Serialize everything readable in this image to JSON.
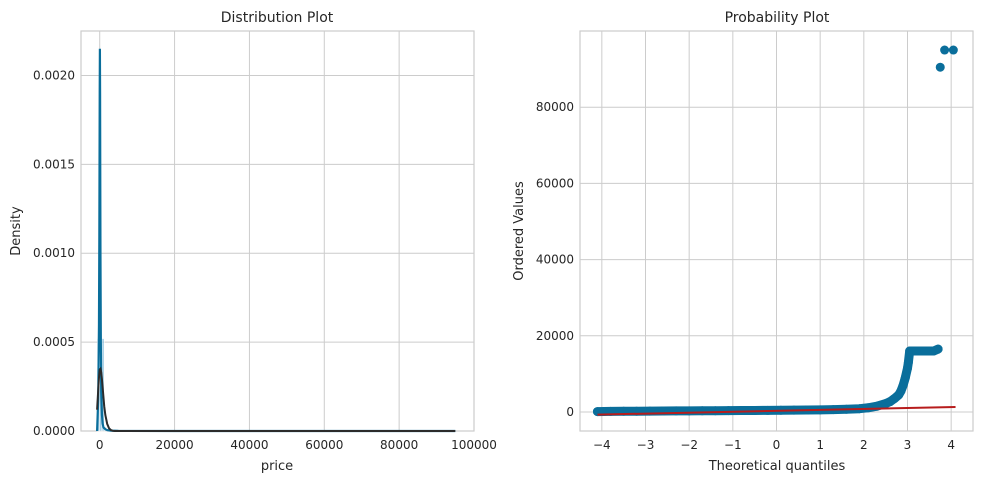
{
  "chart_data": [
    {
      "type": "histogram",
      "title": "Distribution Plot",
      "xlabel": "price",
      "ylabel": "Density",
      "xlim": [
        -5000,
        100000
      ],
      "ylim": [
        0,
        0.00225
      ],
      "grid": true,
      "xticks": [
        0,
        20000,
        40000,
        60000,
        80000,
        100000
      ],
      "xtick_labels": [
        "0",
        "20000",
        "40000",
        "60000",
        "80000",
        "100000"
      ],
      "yticks": [
        0,
        0.0005,
        0.001,
        0.0015,
        0.002
      ],
      "ytick_labels": [
        "0.0000",
        "0.0005",
        "0.0010",
        "0.0015",
        "0.0020"
      ],
      "bars": [
        {
          "x0": -600,
          "x1": 0,
          "value": 0.00052
        },
        {
          "x0": 0,
          "x1": 600,
          "value": 0.00052
        },
        {
          "x0": 600,
          "x1": 1200,
          "value": 0.00052
        },
        {
          "x0": 1200,
          "x1": 1800,
          "value": 2e-05
        }
      ],
      "kde": {
        "x": [
          -700,
          -400,
          -200,
          -100,
          0,
          50,
          100,
          150,
          200,
          300,
          400,
          600,
          800,
          1000,
          1500,
          2000,
          3000,
          5000,
          20000,
          50000,
          95000
        ],
        "y": [
          0.0,
          0.00018,
          0.0006,
          0.0011,
          0.0019,
          0.00215,
          0.0019,
          0.0014,
          0.001,
          0.0005,
          0.00022,
          9e-05,
          4e-05,
          2e-05,
          1e-05,
          5e-06,
          2e-06,
          5e-07,
          0.0,
          0.0,
          0.0
        ]
      },
      "normal_fit": {
        "x": [
          -700,
          -400,
          -200,
          0,
          200,
          400,
          600,
          800,
          1000,
          1200,
          1500,
          2000,
          2500,
          3000,
          3500,
          4000,
          6000,
          95000
        ],
        "y": [
          0.00012,
          0.00023,
          0.0003,
          0.000345,
          0.00035,
          0.00033,
          0.00029,
          0.00024,
          0.00019,
          0.00014,
          9e-05,
          4e-05,
          1.5e-05,
          5e-06,
          1e-06,
          0.0,
          0.0,
          0.0
        ]
      }
    },
    {
      "type": "scatter",
      "title": "Probability Plot",
      "xlabel": "Theoretical quantiles",
      "ylabel": "Ordered Values",
      "xlim": [
        -4.5,
        4.5
      ],
      "ylim": [
        -5000,
        100000
      ],
      "grid": true,
      "xticks": [
        -4,
        -3,
        -2,
        -1,
        0,
        1,
        2,
        3,
        4
      ],
      "xtick_labels": [
        "−4",
        "−3",
        "−2",
        "−1",
        "0",
        "1",
        "2",
        "3",
        "4"
      ],
      "yticks": [
        0,
        20000,
        40000,
        60000,
        80000
      ],
      "ytick_labels": [
        "0",
        "20000",
        "40000",
        "60000",
        "80000"
      ],
      "points": {
        "x": [
          -4.1,
          -3.8,
          -3.5,
          -3.2,
          -2.9,
          -2.6,
          -2.3,
          -2.0,
          -1.7,
          -1.4,
          -1.1,
          -0.8,
          -0.5,
          -0.2,
          0.1,
          0.4,
          0.7,
          1.0,
          1.3,
          1.6,
          1.9,
          2.1,
          2.3,
          2.5,
          2.6,
          2.7,
          2.8,
          2.85,
          2.9,
          2.95,
          3.0,
          3.02,
          3.05,
          3.1,
          3.2,
          3.3,
          3.4,
          3.5,
          3.6,
          3.7,
          3.75,
          3.85,
          4.05
        ],
        "y": [
          100,
          150,
          180,
          200,
          220,
          250,
          270,
          290,
          310,
          330,
          350,
          370,
          390,
          410,
          440,
          470,
          500,
          560,
          620,
          700,
          850,
          1100,
          1500,
          2200,
          2700,
          3500,
          4500,
          5500,
          7000,
          9000,
          11500,
          13000,
          16000,
          16000,
          16000,
          16000,
          16000,
          16000,
          16000,
          16500,
          90500,
          95000,
          95000
        ]
      },
      "fit_line": {
        "x": [
          -4.1,
          4.1
        ],
        "y": [
          -700,
          1300
        ]
      }
    }
  ]
}
